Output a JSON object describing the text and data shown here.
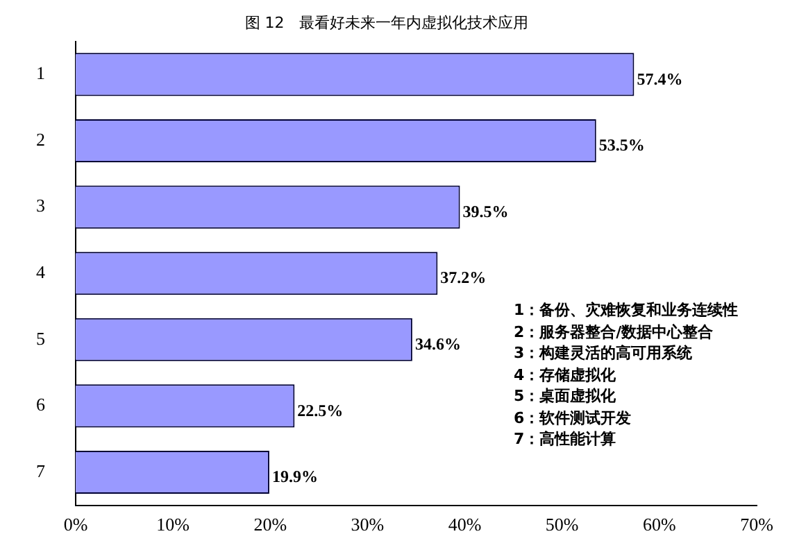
{
  "chart_data": {
    "type": "bar",
    "orientation": "horizontal",
    "title": "图 12　最看好未来一年内虚拟化技术应用",
    "categories": [
      "1",
      "2",
      "3",
      "4",
      "5",
      "6",
      "7"
    ],
    "series": [
      {
        "color": "#9999ff",
        "values": [
          57.4,
          53.5,
          39.5,
          37.2,
          34.6,
          22.5,
          19.9
        ],
        "value_labels": [
          "57.4%",
          "53.5%",
          "39.5%",
          "37.2%",
          "34.6%",
          "22.5%",
          "19.9%"
        ]
      }
    ],
    "xlim": [
      0,
      70
    ],
    "xticks": [
      {
        "value": 0,
        "label": "0%"
      },
      {
        "value": 10,
        "label": "10%"
      },
      {
        "value": 20,
        "label": "20%"
      },
      {
        "value": 30,
        "label": "30%"
      },
      {
        "value": 40,
        "label": "40%"
      },
      {
        "value": 50,
        "label": "50%"
      },
      {
        "value": 60,
        "label": "60%"
      },
      {
        "value": 70,
        "label": "70%"
      }
    ],
    "grid": false,
    "legend": false,
    "annotations": [
      "1：备份、灾难恢复和业务连续性",
      "2：服务器整合/数据中心整合",
      "3：构建灵活的高可用系统",
      "4：存储虚拟化",
      "5：桌面虚拟化",
      "6：软件测试开发",
      "7：高性能计算"
    ]
  }
}
